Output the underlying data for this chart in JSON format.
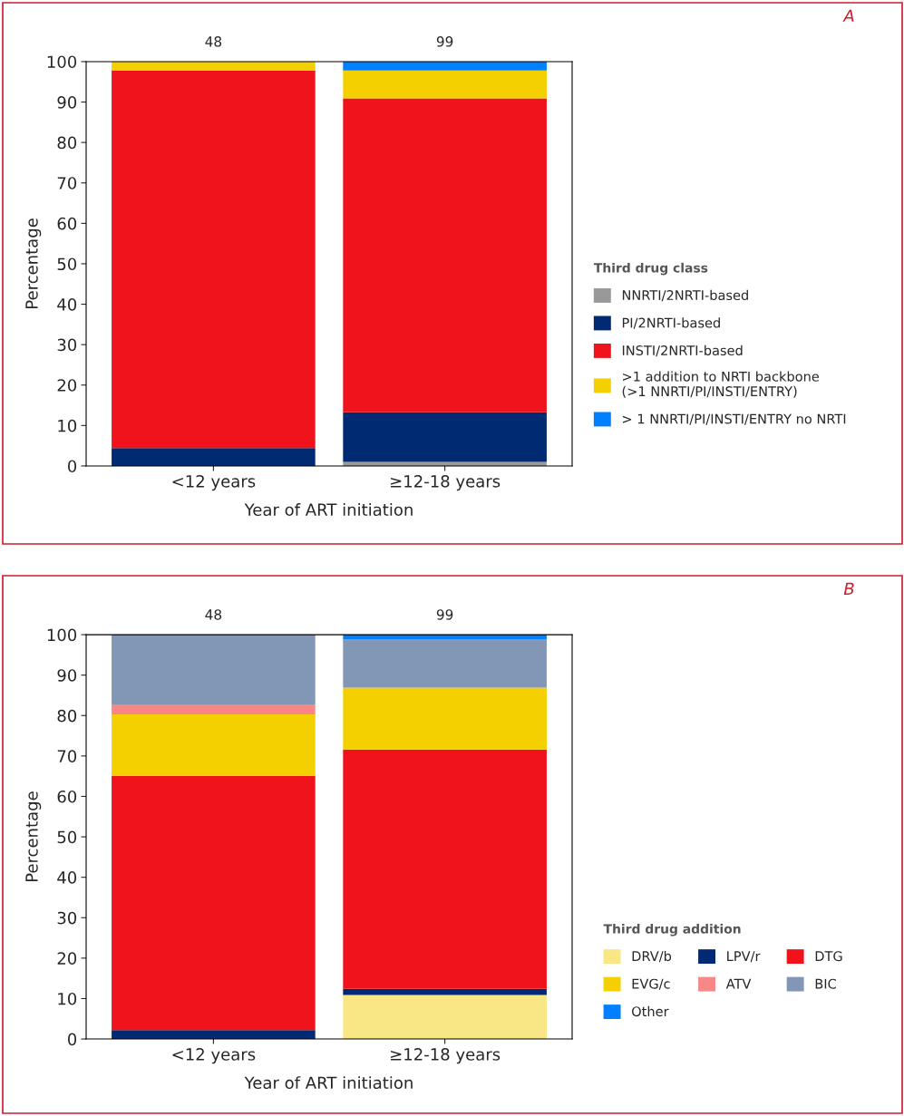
{
  "chart_data": [
    {
      "type": "bar",
      "stacked": true,
      "categories": [
        "<12 years",
        "≥12-18 years"
      ],
      "xlabel": "Year of ART initiation",
      "ylabel": "Percentage",
      "ylim": [
        0,
        100
      ],
      "yticks": [
        0,
        10,
        20,
        30,
        40,
        50,
        60,
        70,
        80,
        90,
        100
      ],
      "legend_title": "Third drug class",
      "legend": "right",
      "grid": false,
      "annotations": [
        "A",
        "48",
        "99"
      ],
      "series": [
        {
          "name": "NNRTI/2NRTI-based",
          "color": "#999999",
          "values": [
            0,
            1.0
          ]
        },
        {
          "name": "PI/2NRTI-based",
          "color": "#002a72",
          "values": [
            4.4,
            12.3
          ]
        },
        {
          "name": "INSTI/2NRTI-based",
          "color": "#f0131b",
          "values": [
            93.4,
            77.6
          ]
        },
        {
          "name": ">1 addition to NRTI backbone\n(>1 NNRTI/PI/INSTI/ENTRY)",
          "color": "#f5d000",
          "values": [
            2.2,
            6.9
          ]
        },
        {
          "name": "> 1 NNRTI/PI/INSTI/ENTRY no NRTI",
          "color": "#0080ff",
          "values": [
            0,
            2.2
          ]
        }
      ]
    },
    {
      "type": "bar",
      "stacked": true,
      "categories": [
        "<12 years",
        "≥12-18 years"
      ],
      "xlabel": "Year of ART initiation",
      "ylabel": "Percentage",
      "ylim": [
        0,
        100
      ],
      "yticks": [
        0,
        10,
        20,
        30,
        40,
        50,
        60,
        70,
        80,
        90,
        100
      ],
      "legend_title": "Third drug addition",
      "legend": "bottom right",
      "grid": false,
      "annotations": [
        "B",
        "48",
        "99"
      ],
      "series": [
        {
          "name": "DRV/b",
          "color": "#f8e784",
          "values": [
            0,
            10.9
          ]
        },
        {
          "name": "LPV/r",
          "color": "#002a72",
          "values": [
            2.2,
            1.5
          ]
        },
        {
          "name": "DTG",
          "color": "#f0131b",
          "values": [
            62.9,
            59.2
          ]
        },
        {
          "name": "EVG/c",
          "color": "#f5d000",
          "values": [
            15.2,
            15.3
          ]
        },
        {
          "name": "ATV",
          "color": "#f98787",
          "values": [
            2.3,
            0
          ]
        },
        {
          "name": "BIC",
          "color": "#8296b6",
          "values": [
            17.4,
            11.9
          ]
        },
        {
          "name": "Other",
          "color": "#0080ff",
          "values": [
            0,
            1.2
          ]
        }
      ]
    }
  ]
}
